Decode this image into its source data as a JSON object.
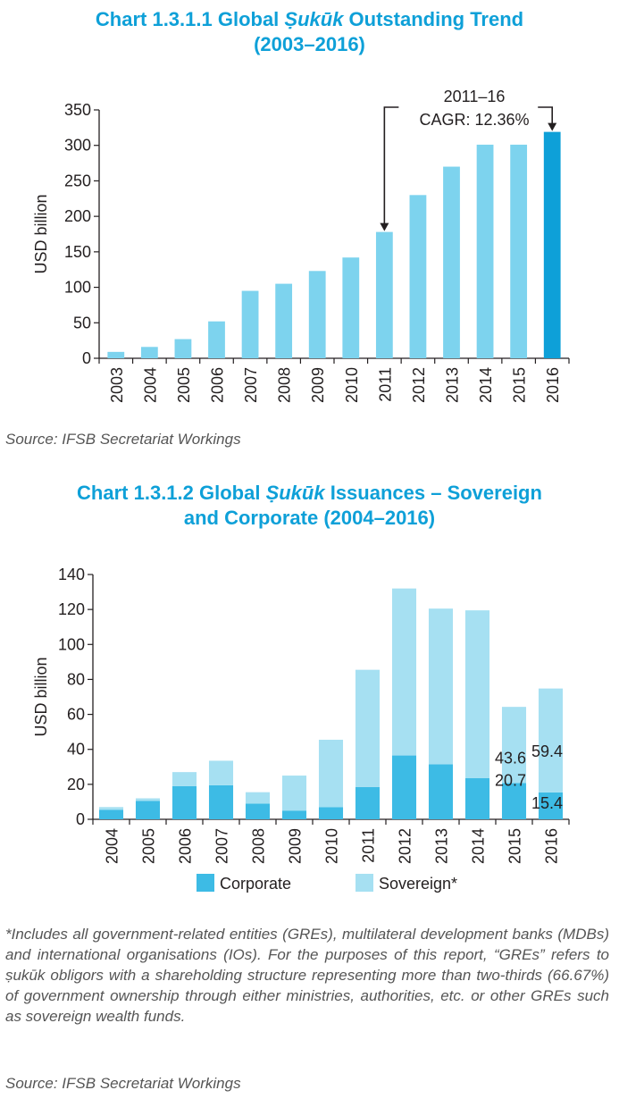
{
  "chart_data": [
    {
      "type": "bar",
      "title_pre": "Chart 1.3.1.1 Global ",
      "title_ital": "Ṣukūk",
      "title_post": " Outstanding Trend",
      "title_line2": "(2003–2016)",
      "ylabel": "USD billion",
      "xlabel": "",
      "ylim": [
        0,
        350
      ],
      "yticks": [
        0,
        50,
        100,
        150,
        200,
        250,
        300,
        350
      ],
      "categories": [
        "2003",
        "2004",
        "2005",
        "2006",
        "2007",
        "2008",
        "2009",
        "2010",
        "2011",
        "2012",
        "2013",
        "2014",
        "2015",
        "2016"
      ],
      "values": [
        9,
        16,
        27,
        52,
        95,
        105,
        123,
        142,
        178,
        230,
        270,
        301,
        301,
        319
      ],
      "colors": {
        "bar": "#7dd3ee",
        "highlight": "#0ea0d8"
      },
      "highlight_category": "2016",
      "annotation": {
        "line1": "2011–16",
        "line2": "CAGR: 12.36%",
        "from": "2011",
        "to": "2016"
      },
      "source": "Source: IFSB Secretariat Workings"
    },
    {
      "type": "bar",
      "stacked": true,
      "title_pre": "Chart 1.3.1.2  Global ",
      "title_ital": "Ṣukūk",
      "title_post": " Issuances – Sovereign",
      "title_line2": "and Corporate (2004–2016)",
      "ylabel": "USD billion",
      "xlabel": "",
      "ylim": [
        0,
        140
      ],
      "yticks": [
        0,
        20,
        40,
        60,
        80,
        100,
        120,
        140
      ],
      "categories": [
        "2004",
        "2005",
        "2006",
        "2007",
        "2008",
        "2009",
        "2010",
        "2011",
        "2012",
        "2013",
        "2014",
        "2015",
        "2016"
      ],
      "series": [
        {
          "name": "Corporate",
          "color": "#3dbbe5",
          "values": [
            5.5,
            10.5,
            19,
            19.5,
            9,
            5,
            7,
            18.5,
            36.5,
            31.5,
            23.5,
            20.7,
            15.4
          ]
        },
        {
          "name": "Sovereign*",
          "color": "#a6e0f2",
          "values": [
            1.5,
            1.5,
            8,
            14,
            6.5,
            20,
            38.5,
            67,
            95.5,
            89,
            96,
            43.6,
            59.4
          ]
        }
      ],
      "data_labels": [
        {
          "category": "2015",
          "series": "Sovereign*",
          "text": "43.6"
        },
        {
          "category": "2015",
          "series": "Corporate",
          "text": "20.7"
        },
        {
          "category": "2016",
          "series": "Sovereign*",
          "text": "59.4"
        },
        {
          "category": "2016",
          "series": "Corporate",
          "text": "15.4"
        }
      ],
      "legend_position": "bottom",
      "note": "*Includes all government-related entities (GREs), multilateral development banks (MDBs) and international organisations (IOs). For the purposes of this report, “GREs” refers to ṣukūk obligors with a shareholding structure representing more than two-thirds (66.67%) of government ownership through either ministries, authorities, etc. or other GREs such as sovereign wealth funds.",
      "source": "Source: IFSB Secretariat Workings"
    }
  ]
}
